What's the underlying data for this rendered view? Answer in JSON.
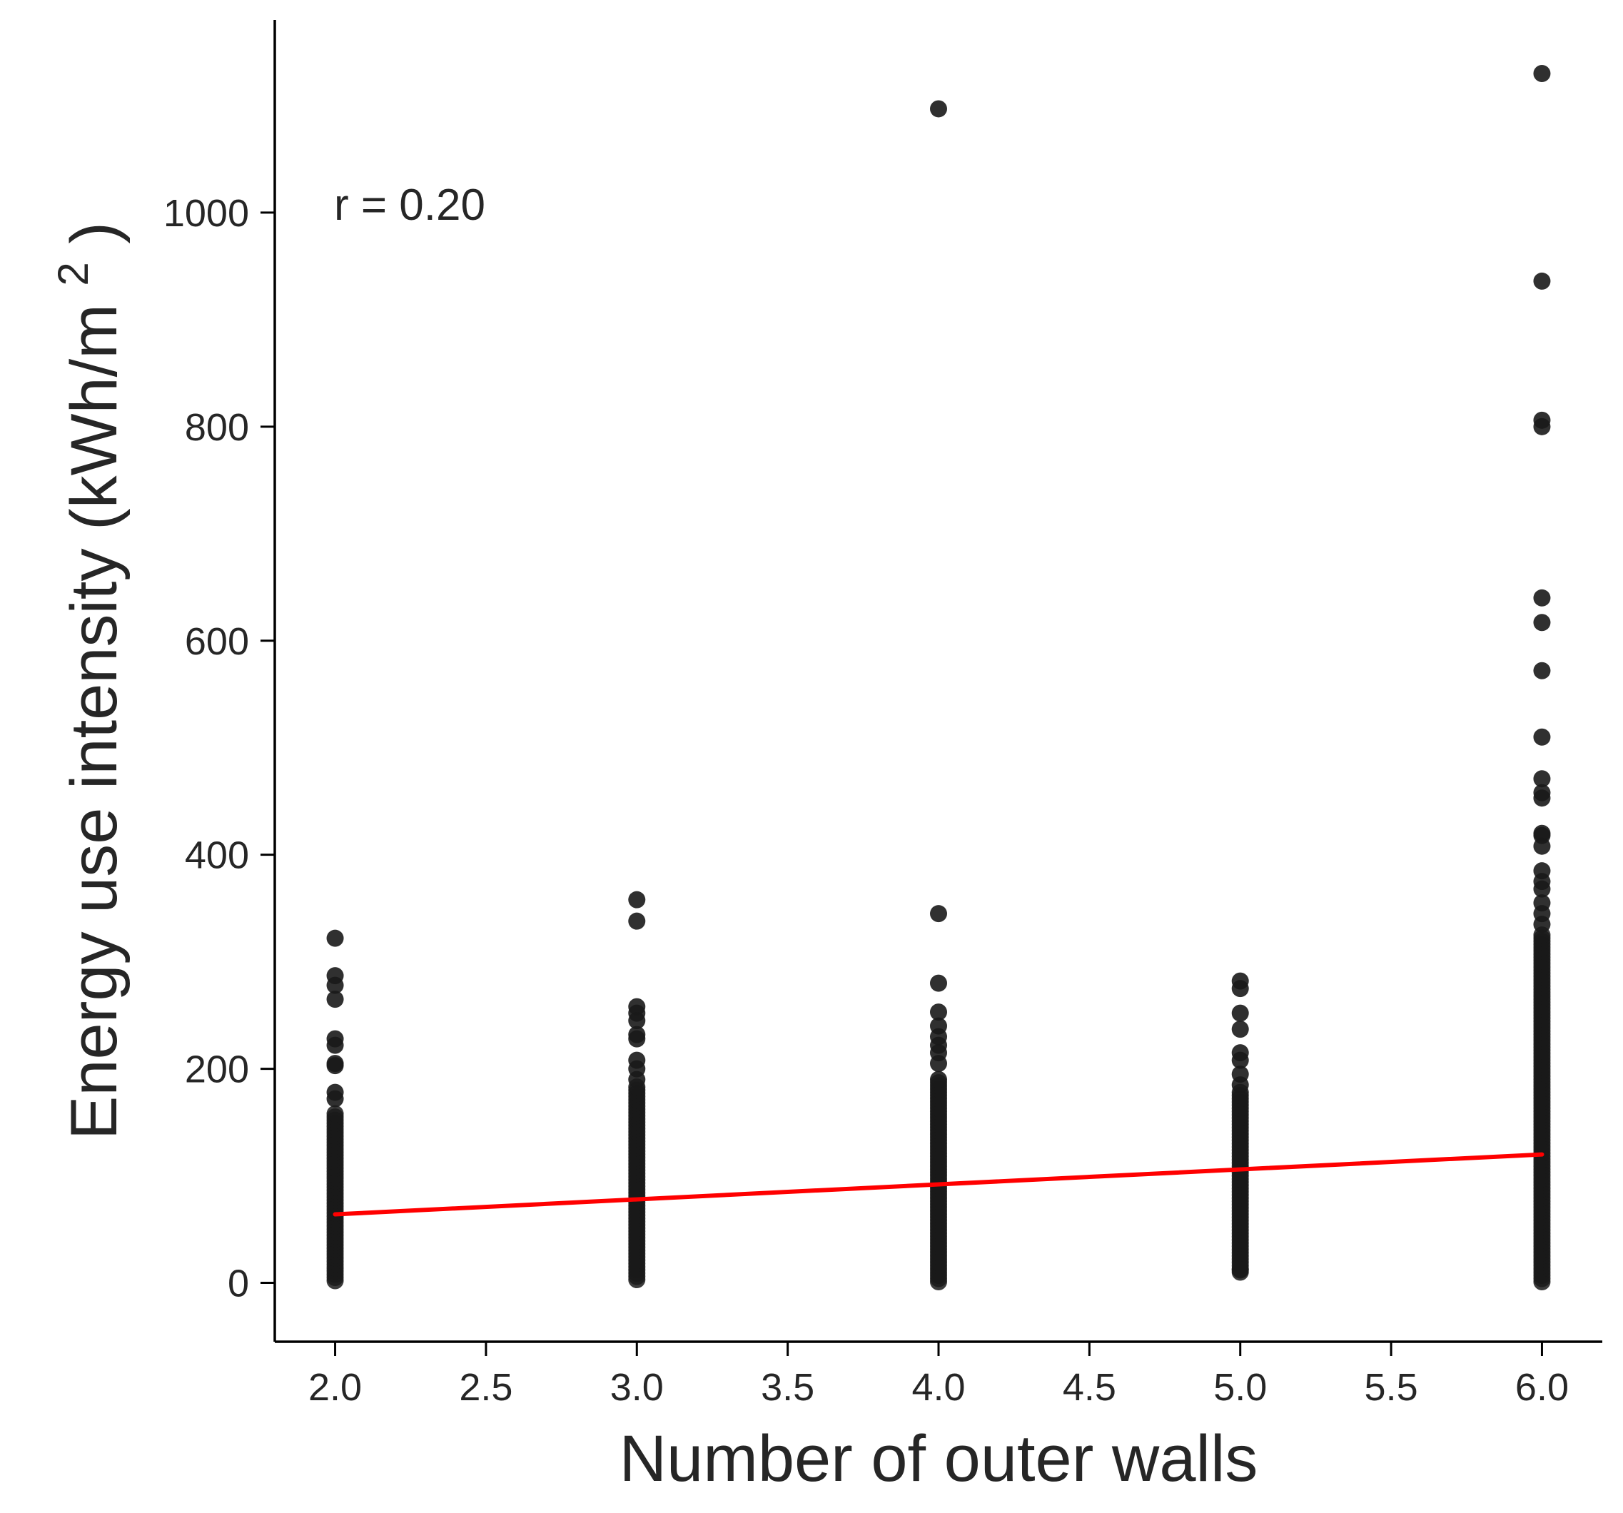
{
  "chart_data": {
    "type": "scatter",
    "title": "",
    "xlabel": "Number of outer walls",
    "ylabel_main": "Energy use intensity (kWh/m",
    "ylabel_sup": "2",
    "ylabel_close": ")",
    "xlim": [
      1.8,
      6.2
    ],
    "ylim": [
      -55,
      1180
    ],
    "xticks": [
      2.0,
      2.5,
      3.0,
      3.5,
      4.0,
      4.5,
      5.0,
      5.5,
      6.0
    ],
    "xtick_labels": [
      "2.0",
      "2.5",
      "3.0",
      "3.5",
      "4.0",
      "4.5",
      "5.0",
      "5.5",
      "6.0"
    ],
    "yticks": [
      0,
      200,
      400,
      600,
      800,
      1000
    ],
    "ytick_labels": [
      "0",
      "200",
      "400",
      "600",
      "800",
      "1000"
    ],
    "grid": false,
    "annotation": "r = 0.20",
    "colors": {
      "points": "#1a1a1a",
      "fit_line": "#ff0000",
      "axis": "#000000"
    },
    "series": [
      {
        "type": "scatter",
        "points": [
          {
            "x": 2,
            "y": 322
          },
          {
            "x": 2,
            "y": 287
          },
          {
            "x": 2,
            "y": 278
          },
          {
            "x": 2,
            "y": 265
          },
          {
            "x": 2,
            "y": 228
          },
          {
            "x": 2,
            "y": 222
          },
          {
            "x": 2,
            "y": 205
          },
          {
            "x": 2,
            "y": 203
          },
          {
            "x": 2,
            "y": 178
          },
          {
            "x": 2,
            "y": 172
          },
          {
            "x": 3,
            "y": 358
          },
          {
            "x": 3,
            "y": 338
          },
          {
            "x": 3,
            "y": 258
          },
          {
            "x": 3,
            "y": 252
          },
          {
            "x": 3,
            "y": 245
          },
          {
            "x": 3,
            "y": 232
          },
          {
            "x": 3,
            "y": 228
          },
          {
            "x": 3,
            "y": 208
          },
          {
            "x": 3,
            "y": 200
          },
          {
            "x": 3,
            "y": 190
          },
          {
            "x": 4,
            "y": 1097
          },
          {
            "x": 4,
            "y": 345
          },
          {
            "x": 4,
            "y": 280
          },
          {
            "x": 4,
            "y": 253
          },
          {
            "x": 4,
            "y": 240
          },
          {
            "x": 4,
            "y": 230
          },
          {
            "x": 4,
            "y": 222
          },
          {
            "x": 4,
            "y": 215
          },
          {
            "x": 4,
            "y": 205
          },
          {
            "x": 4,
            "y": 190
          },
          {
            "x": 5,
            "y": 282
          },
          {
            "x": 5,
            "y": 275
          },
          {
            "x": 5,
            "y": 252
          },
          {
            "x": 5,
            "y": 237
          },
          {
            "x": 5,
            "y": 215
          },
          {
            "x": 5,
            "y": 208
          },
          {
            "x": 5,
            "y": 195
          },
          {
            "x": 5,
            "y": 185
          },
          {
            "x": 5,
            "y": 12
          },
          {
            "x": 6,
            "y": 1130
          },
          {
            "x": 6,
            "y": 936
          },
          {
            "x": 6,
            "y": 806
          },
          {
            "x": 6,
            "y": 800
          },
          {
            "x": 6,
            "y": 640
          },
          {
            "x": 6,
            "y": 617
          },
          {
            "x": 6,
            "y": 572
          },
          {
            "x": 6,
            "y": 510
          },
          {
            "x": 6,
            "y": 471
          },
          {
            "x": 6,
            "y": 458
          },
          {
            "x": 6,
            "y": 453
          },
          {
            "x": 6,
            "y": 420
          },
          {
            "x": 6,
            "y": 418
          },
          {
            "x": 6,
            "y": 408
          },
          {
            "x": 6,
            "y": 385
          },
          {
            "x": 6,
            "y": 375
          },
          {
            "x": 6,
            "y": 368
          },
          {
            "x": 6,
            "y": 355
          },
          {
            "x": 6,
            "y": 345
          },
          {
            "x": 6,
            "y": 335
          }
        ],
        "dense_ranges": [
          {
            "x": 2,
            "y_min": 2,
            "y_max": 160
          },
          {
            "x": 3,
            "y_min": 3,
            "y_max": 185
          },
          {
            "x": 4,
            "y_min": 1,
            "y_max": 188
          },
          {
            "x": 5,
            "y_min": 10,
            "y_max": 178
          },
          {
            "x": 6,
            "y_min": 1,
            "y_max": 325
          }
        ]
      },
      {
        "type": "line",
        "x": [
          2.0,
          6.0
        ],
        "y": [
          64,
          120
        ]
      }
    ]
  }
}
